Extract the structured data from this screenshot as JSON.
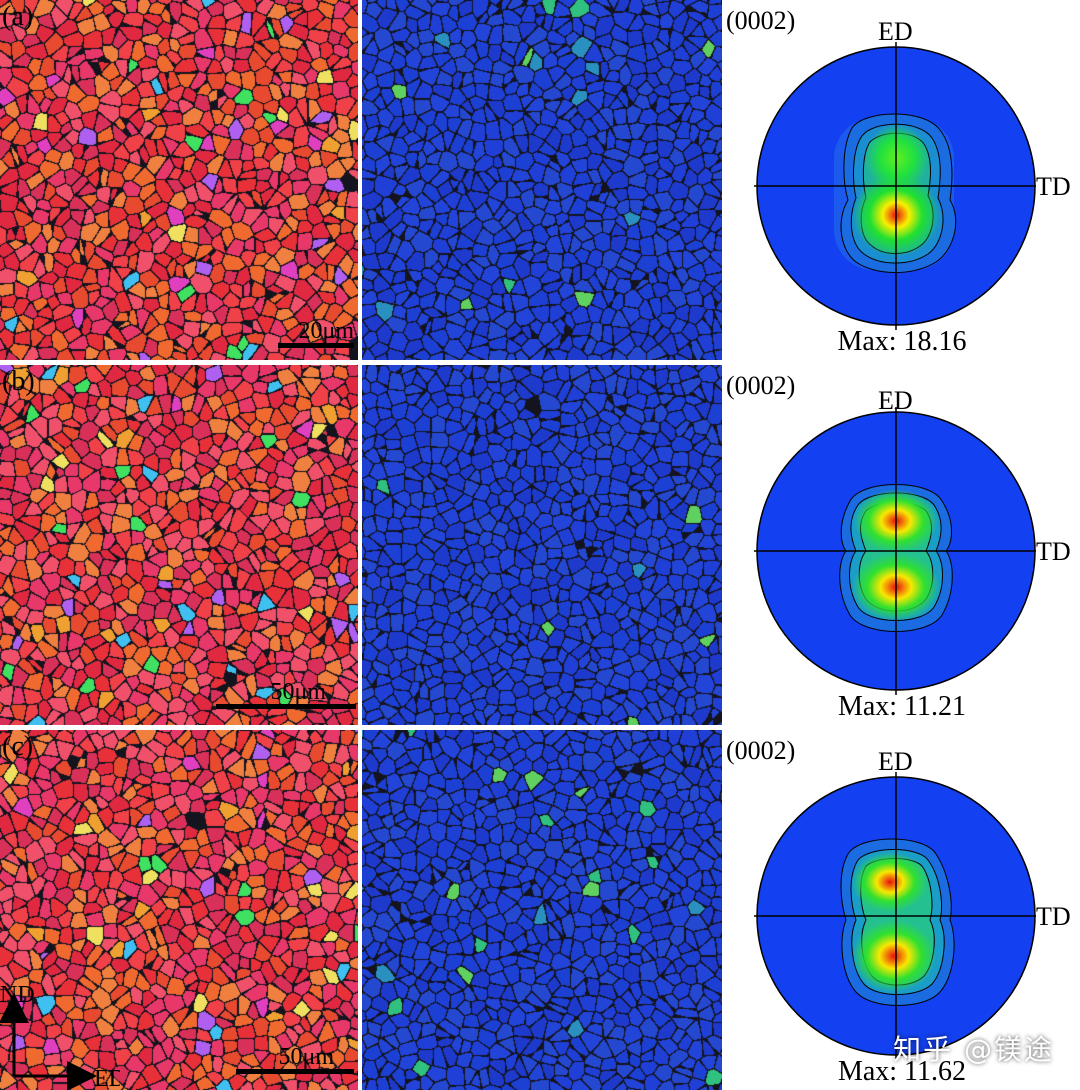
{
  "panels": [
    {
      "letter": "(a)",
      "scale_text": "20μm",
      "plane": "(0002)",
      "ed": "ED",
      "td": "TD",
      "max_label": "Max: 18.16",
      "max_value": 18.16
    },
    {
      "letter": "(b)",
      "scale_text": "50μm",
      "plane": "(0002)",
      "ed": "ED",
      "td": "TD",
      "max_label": "Max: 11.21",
      "max_value": 11.21
    },
    {
      "letter": "(c)",
      "scale_text": "50μm",
      "plane": "(0002)",
      "ed": "ED",
      "td": "TD",
      "max_label": "Max: 11.62",
      "max_value": 11.62
    }
  ],
  "axes": {
    "vertical": "ND",
    "horizontal": "ED"
  },
  "watermark": "知乎 @镁途",
  "colors": {
    "ipf_dominant": "#e8323a",
    "kam_background": "#1f3fd6",
    "pf_background": "#1340f0",
    "pf_peak": "#e81010"
  }
}
